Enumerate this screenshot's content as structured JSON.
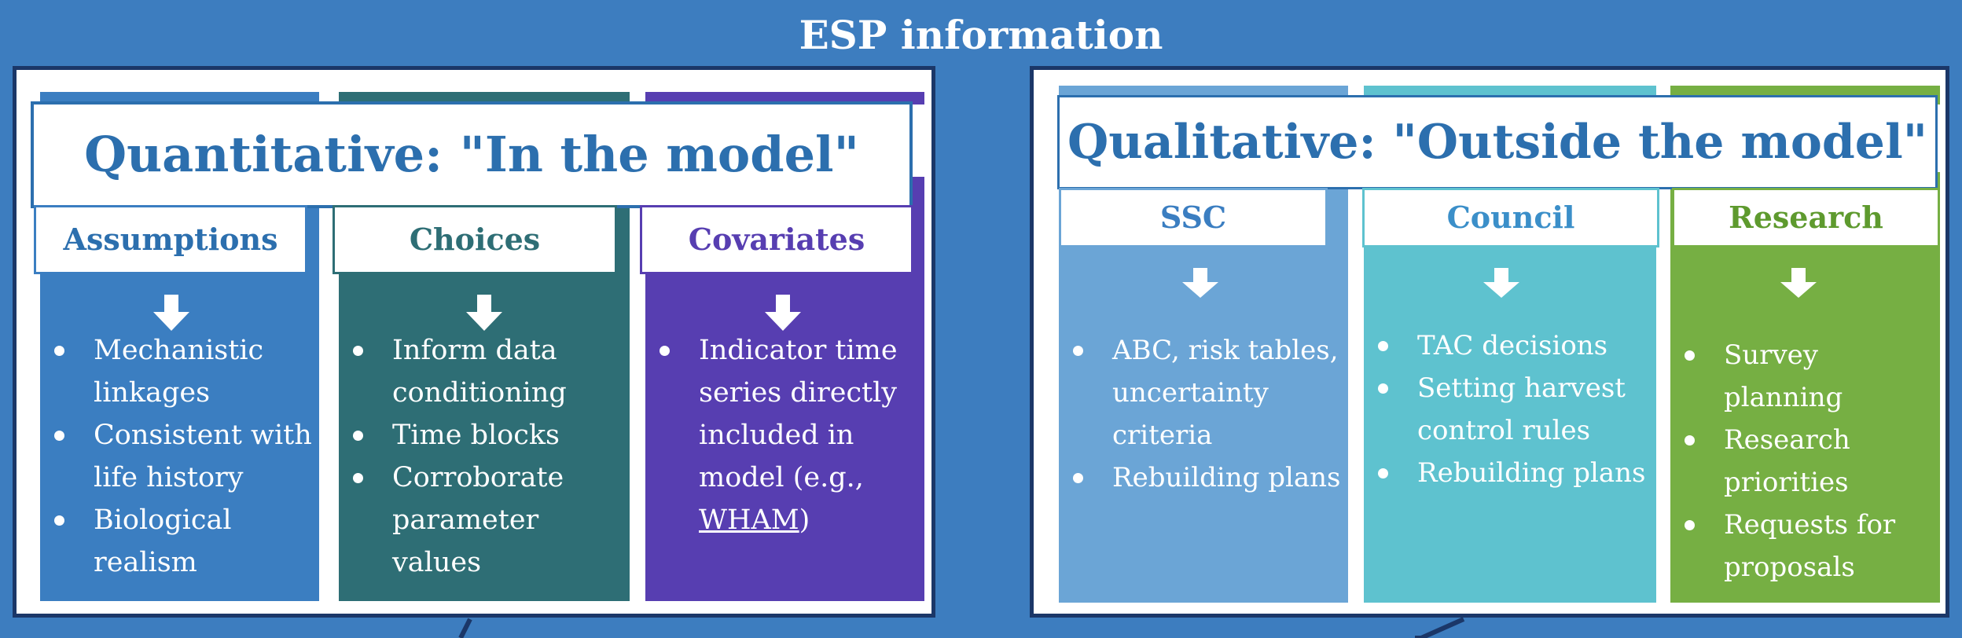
{
  "title": "ESP information",
  "quantitative": {
    "title": "Quantitative: \"In the model\"",
    "columns": [
      {
        "heading": "Assumptions",
        "color": "#3b7ec1",
        "bullets": [
          "Mechanistic linkages",
          "Consistent with life history",
          "Biological realism"
        ]
      },
      {
        "heading": "Choices",
        "color": "#2e6e75",
        "bullets": [
          "Inform data conditioning",
          "Time blocks",
          "Corroborate parameter values"
        ]
      },
      {
        "heading": "Covariates",
        "color": "#573eb1",
        "bullets_text": "Indicator time series directly included in model (e.g., ",
        "bullets_link": "WHAM",
        "bullets_after": ")"
      }
    ]
  },
  "qualitative": {
    "title": "Qualitative: \"Outside the model\"",
    "columns": [
      {
        "heading": "SSC",
        "color": "#6ba5d6",
        "bullets": [
          "ABC, risk tables, uncertainty criteria",
          "Rebuilding plans"
        ]
      },
      {
        "heading": "Council",
        "color": "#5ec2cf",
        "bullets": [
          "TAC decisions",
          "Setting harvest control rules",
          "Rebuilding plans"
        ]
      },
      {
        "heading": "Research",
        "color": "#76af43",
        "bullets": [
          "Survey planning",
          "Research priorities",
          "Requests for proposals"
        ]
      }
    ]
  },
  "colors": {
    "background": "#3d7dbf",
    "panel_border": "#1b3768",
    "quant_title": "#2c6fae",
    "qual_title": "#2c6fae"
  }
}
